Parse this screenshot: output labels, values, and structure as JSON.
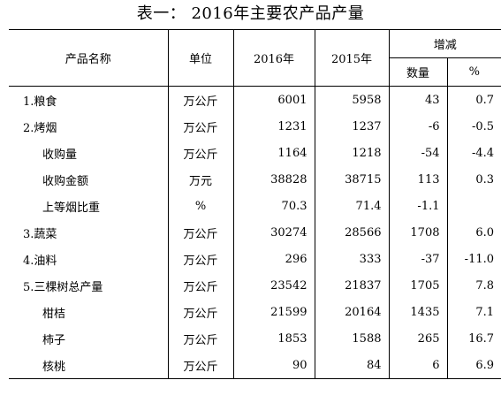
{
  "title": "表一：  2016年主要农产品产量",
  "headers": {
    "name": "产品名称",
    "unit": "单位",
    "y2016": "2016年",
    "y2015": "2015年",
    "change": "增减",
    "qty": "数量",
    "pct": "%"
  },
  "rows": [
    {
      "name": "1.粮食",
      "unit": "万公斤",
      "y2016": "6001",
      "y2015": "5958",
      "qty": "43",
      "pct": "0.7"
    },
    {
      "name": "2.烤烟",
      "unit": "万公斤",
      "y2016": "1231",
      "y2015": "1237",
      "qty": "-6",
      "pct": "-0.5"
    },
    {
      "name": "收购量",
      "unit": "万公斤",
      "y2016": "1164",
      "y2015": "1218",
      "qty": "-54",
      "pct": "-4.4"
    },
    {
      "name": "收购金额",
      "unit": "万元",
      "y2016": "38828",
      "y2015": "38715",
      "qty": "113",
      "pct": "0.3"
    },
    {
      "name": "上等烟比重",
      "unit": "%",
      "y2016": "70.3",
      "y2015": "71.4",
      "qty": "-1.1",
      "pct": ""
    },
    {
      "name": "3.蔬菜",
      "unit": "万公斤",
      "y2016": "30274",
      "y2015": "28566",
      "qty": "1708",
      "pct": "6.0"
    },
    {
      "name": "4.油料",
      "unit": "万公斤",
      "y2016": "296",
      "y2015": "333",
      "qty": "-37",
      "pct": "-11.0"
    },
    {
      "name": "5.三棵树总产量",
      "unit": "万公斤",
      "y2016": "23542",
      "y2015": "21837",
      "qty": "1705",
      "pct": "7.8"
    },
    {
      "name": "柑桔",
      "unit": "万公斤",
      "y2016": "21599",
      "y2015": "20164",
      "qty": "1435",
      "pct": "7.1"
    },
    {
      "name": "柿子",
      "unit": "万公斤",
      "y2016": "1853",
      "y2015": "1588",
      "qty": "265",
      "pct": "16.7"
    },
    {
      "name": "核桃",
      "unit": "万公斤",
      "y2016": "90",
      "y2015": "84",
      "qty": "6",
      "pct": "6.9"
    }
  ]
}
